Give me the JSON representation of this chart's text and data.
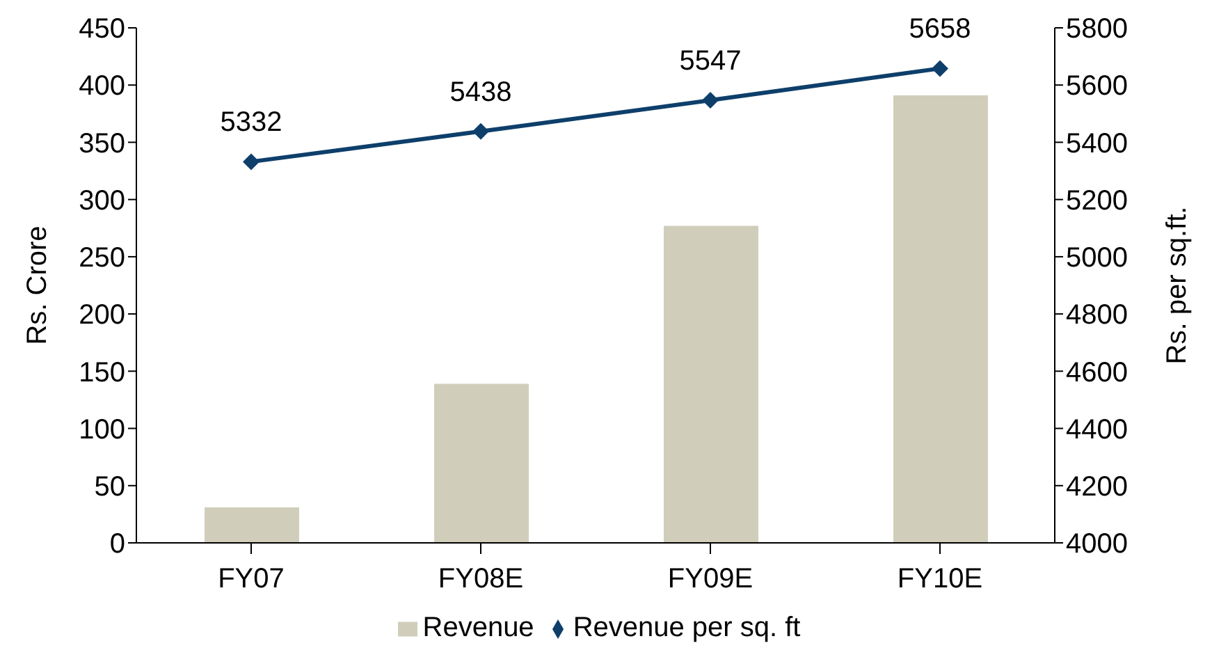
{
  "chart_data": {
    "type": "bar",
    "categories": [
      "FY07",
      "FY08E",
      "FY09E",
      "FY10E"
    ],
    "ylabel": "Rs. Crore",
    "y2label": "Rs. per sq.ft.",
    "ylim": [
      0,
      450
    ],
    "yticks": [
      0,
      50,
      100,
      150,
      200,
      250,
      300,
      350,
      400,
      450
    ],
    "y2lim": [
      4000,
      5800
    ],
    "y2ticks": [
      4000,
      4200,
      4400,
      4600,
      4800,
      5000,
      5200,
      5400,
      5600,
      5800
    ],
    "series": [
      {
        "name": "Revenue",
        "color": "#d0cebb",
        "values": [
          31,
          139,
          277,
          391
        ]
      },
      {
        "name": "Revenue per sq. ft",
        "type": "line",
        "axis": "y2",
        "color": "#0e3f6b",
        "marker": "diamond",
        "values": [
          5332,
          5438,
          5547,
          5658
        ],
        "value_labels": [
          "5332",
          "5438",
          "5547",
          "5658"
        ]
      }
    ],
    "grid": false,
    "legend": "bottom"
  }
}
